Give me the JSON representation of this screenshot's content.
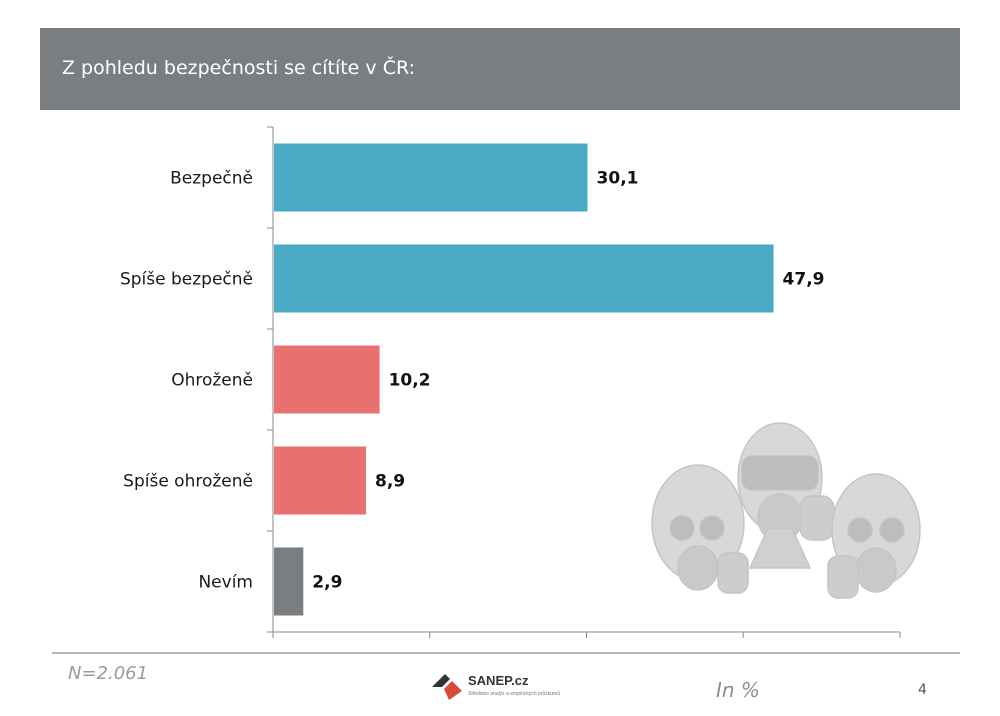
{
  "header": {
    "title": "Z pohledu bezpečnosti se cítíte v ČR:"
  },
  "chart_data": {
    "type": "bar",
    "orientation": "horizontal",
    "title": "Z pohledu bezpečnosti se cítíte v ČR:",
    "categories": [
      "Bezpečně",
      "Spíše bezpečně",
      "Ohroženě",
      "Spíše ohroženě",
      "Nevím"
    ],
    "values": [
      30.1,
      47.9,
      10.2,
      8.9,
      2.9
    ],
    "value_labels": [
      "30,1",
      "47,9",
      "10,2",
      "8,9",
      "2,9"
    ],
    "bar_colors": [
      "#4babc6",
      "#4babc6",
      "#e8716f",
      "#e8716f",
      "#7b7e81"
    ],
    "xlim": [
      0,
      60
    ],
    "grid": false,
    "unit": "In %"
  },
  "footer": {
    "sample_size": "N=2.061",
    "unit": "In %",
    "page_number": "4",
    "logo_text": "SANEP.cz",
    "logo_tagline": "Středisko analýz a empirických průzkumů"
  },
  "illustration": {
    "icon": "gas-mask-people-icon"
  }
}
